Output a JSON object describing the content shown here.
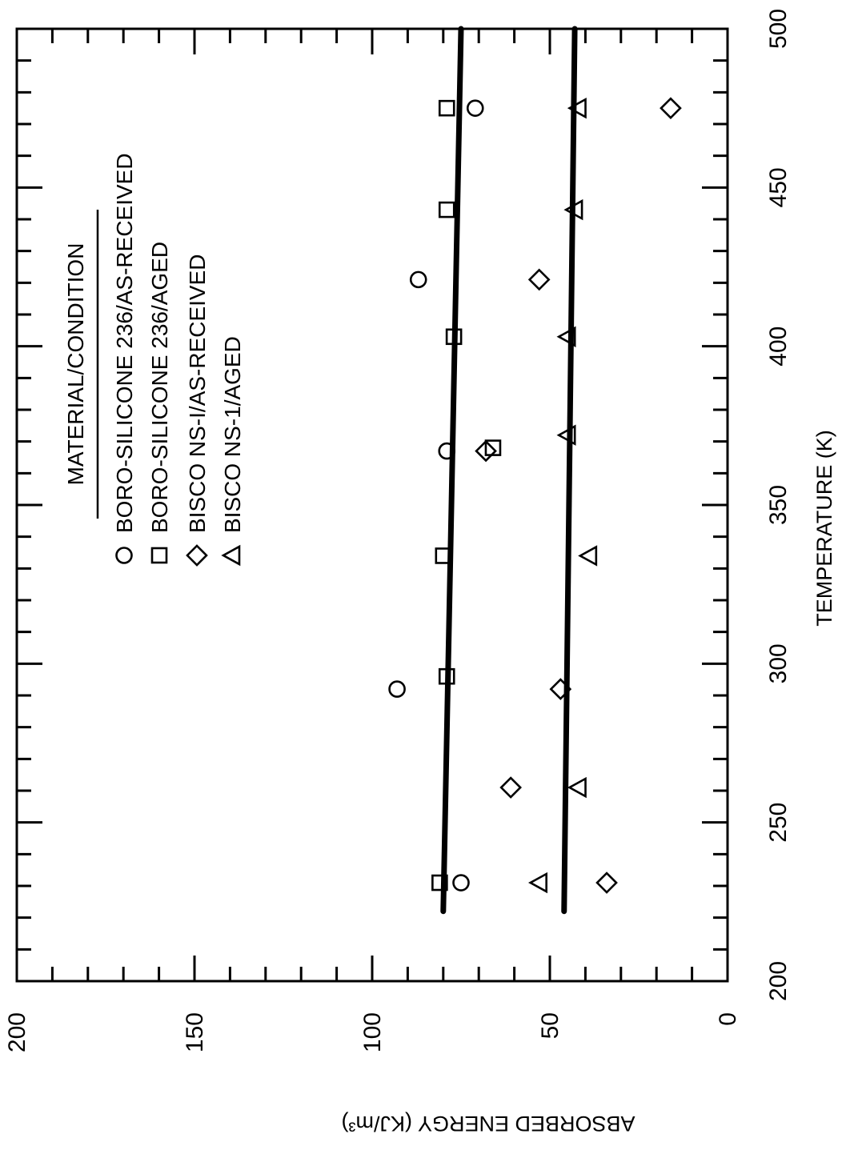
{
  "chart_data": {
    "type": "scatter",
    "orientation": "rotated 90 degrees clockwise",
    "xlabel": "TEMPERATURE (K)",
    "ylabel": "ABSORBED ENERGY (KJ/m³)",
    "xlim": [
      200,
      500
    ],
    "ylim": [
      0,
      200
    ],
    "x_ticks": [
      "200",
      "250",
      "300",
      "350",
      "400",
      "450",
      "500"
    ],
    "y_ticks": [
      "0",
      "50",
      "100",
      "150",
      "200"
    ],
    "legend": {
      "title": "MATERIAL/CONDITION",
      "placement": "top-left",
      "entries": [
        {
          "marker": "circle",
          "label": "BORO-SILICONE 236/AS-RECEIVED"
        },
        {
          "marker": "square",
          "label": "BORO-SILICONE 236/AGED"
        },
        {
          "marker": "diamond",
          "label": "BISCO NS-I/AS-RECEIVED"
        },
        {
          "marker": "triangle",
          "label": "BISCO NS-1/AGED"
        }
      ]
    },
    "series": [
      {
        "name": "BORO-SILICONE 236/AS-RECEIVED",
        "marker": "circle",
        "points": [
          [
            231,
            75
          ],
          [
            292,
            93
          ],
          [
            367,
            79
          ],
          [
            421,
            87
          ],
          [
            475,
            71
          ]
        ]
      },
      {
        "name": "BORO-SILICONE 236/AGED",
        "marker": "square",
        "points": [
          [
            231,
            81
          ],
          [
            296,
            79
          ],
          [
            334,
            80
          ],
          [
            403,
            77
          ],
          [
            443,
            79
          ],
          [
            475,
            79
          ]
        ]
      },
      {
        "name": "BISCO NS-I/AS-RECEIVED",
        "marker": "diamond",
        "points": [
          [
            231,
            34
          ],
          [
            261,
            61
          ],
          [
            292,
            47
          ],
          [
            367,
            68
          ],
          [
            421,
            53
          ],
          [
            475,
            16
          ]
        ]
      },
      {
        "name": "BISCO NS-1/AGED",
        "marker": "triangle",
        "points": [
          [
            231,
            53
          ],
          [
            261,
            42
          ],
          [
            334,
            39
          ],
          [
            372,
            45
          ],
          [
            403,
            45
          ],
          [
            443,
            43
          ],
          [
            475,
            42
          ]
        ]
      }
    ],
    "extra_points": [
      {
        "marker": "square",
        "x": 368,
        "y": 66
      }
    ],
    "fit_lines": [
      {
        "x": [
          222,
          500
        ],
        "y": [
          80,
          75
        ]
      },
      {
        "x": [
          222,
          500
        ],
        "y": [
          46,
          43
        ]
      }
    ],
    "grid": false
  }
}
